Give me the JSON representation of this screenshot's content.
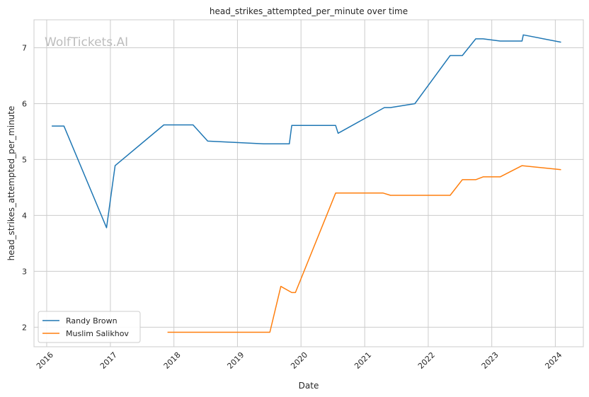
{
  "chart_data": {
    "type": "line",
    "title": "head_strikes_attempted_per_minute over time",
    "xlabel": "Date",
    "ylabel": "head_strikes_attempted_per_minute",
    "watermark": "WolfTickets.AI",
    "xlim": [
      "2015-10-20",
      "2024-06-10"
    ],
    "ylim": [
      1.65,
      7.5
    ],
    "x_ticks": [
      "2016",
      "2017",
      "2018",
      "2019",
      "2020",
      "2021",
      "2022",
      "2023",
      "2024"
    ],
    "y_ticks": [
      2,
      3,
      4,
      5,
      6,
      7
    ],
    "grid": true,
    "legend_position": "lower-left",
    "series": [
      {
        "name": "Randy Brown",
        "color": "#1f77b4",
        "points": [
          [
            "2016-01-30",
            5.6
          ],
          [
            "2016-04-09",
            5.6
          ],
          [
            "2016-12-10",
            3.78
          ],
          [
            "2017-01-28",
            4.89
          ],
          [
            "2017-11-04",
            5.62
          ],
          [
            "2018-04-21",
            5.62
          ],
          [
            "2018-07-14",
            5.33
          ],
          [
            "2019-06-01",
            5.28
          ],
          [
            "2019-10-26",
            5.28
          ],
          [
            "2019-11-09",
            5.61
          ],
          [
            "2020-07-18",
            5.61
          ],
          [
            "2020-08-01",
            5.47
          ],
          [
            "2021-04-24",
            5.93
          ],
          [
            "2021-05-29",
            5.93
          ],
          [
            "2021-10-16",
            6.0
          ],
          [
            "2022-05-07",
            6.86
          ],
          [
            "2022-07-16",
            6.86
          ],
          [
            "2022-10-01",
            7.16
          ],
          [
            "2022-11-12",
            7.16
          ],
          [
            "2023-02-18",
            7.12
          ],
          [
            "2023-06-24",
            7.12
          ],
          [
            "2023-07-01",
            7.23
          ],
          [
            "2024-02-03",
            7.1
          ]
        ]
      },
      {
        "name": "Muslim Salikhov",
        "color": "#ff7f0e",
        "points": [
          [
            "2017-11-25",
            1.91
          ],
          [
            "2019-07-06",
            1.91
          ],
          [
            "2019-09-07",
            2.73
          ],
          [
            "2019-11-09",
            2.62
          ],
          [
            "2019-11-30",
            2.62
          ],
          [
            "2020-07-18",
            4.4
          ],
          [
            "2021-04-17",
            4.4
          ],
          [
            "2021-05-29",
            4.36
          ],
          [
            "2022-05-07",
            4.36
          ],
          [
            "2022-07-16",
            4.64
          ],
          [
            "2022-10-01",
            4.64
          ],
          [
            "2022-11-12",
            4.69
          ],
          [
            "2023-02-18",
            4.69
          ],
          [
            "2023-06-24",
            4.89
          ],
          [
            "2024-02-03",
            4.82
          ]
        ]
      }
    ]
  }
}
